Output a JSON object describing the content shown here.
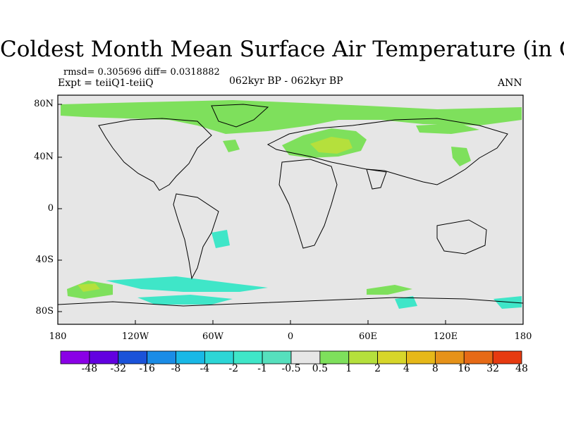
{
  "title": "Coldest Month Mean Surface Air Temperature (in C)",
  "stats_text": "rmsd= 0.305696 diff= 0.0318882",
  "experiment": "Expt = teiiQ1-teiiQ",
  "period": "062kyr BP - 062kyr BP",
  "season": "ANN",
  "y_axis_labels": [
    "80N",
    "40N",
    "0",
    "40S",
    "80S"
  ],
  "x_axis_labels": [
    "180",
    "120W",
    "60W",
    "0",
    "60E",
    "120E",
    "180"
  ],
  "colorbar": {
    "labels": [
      "-48",
      "-32",
      "-16",
      "-8",
      "-4",
      "-2",
      "-1",
      "-0.5",
      "0.5",
      "1",
      "2",
      "4",
      "8",
      "16",
      "32",
      "48"
    ],
    "colors": [
      "#8a00e6",
      "#6200e0",
      "#1a52d9",
      "#1a8ce6",
      "#19b8e6",
      "#2cd6d6",
      "#3fe6c8",
      "#56e0bd",
      "#e6e6e6",
      "#7ee05c",
      "#b5e03c",
      "#d7d62a",
      "#e6b819",
      "#e69219",
      "#e66a16",
      "#e63a10"
    ]
  },
  "map": {
    "background_color": "#e6e6e6",
    "regions": [
      {
        "name": "arctic-warm-band",
        "value_class": 1
      },
      {
        "name": "europe-warming",
        "value_class": 2
      },
      {
        "name": "europe-warming-core",
        "value_class": 3
      },
      {
        "name": "siberia-patch",
        "value_class": 1
      },
      {
        "name": "east-asia-patch",
        "value_class": 1
      },
      {
        "name": "southern-ocean-pacific",
        "value_class": 1
      },
      {
        "name": "southern-ocean-cold-band",
        "value_class": -1
      },
      {
        "name": "south-atlantic-cold",
        "value_class": -1
      },
      {
        "name": "antarctic-cold-patch",
        "value_class": -1
      }
    ]
  }
}
